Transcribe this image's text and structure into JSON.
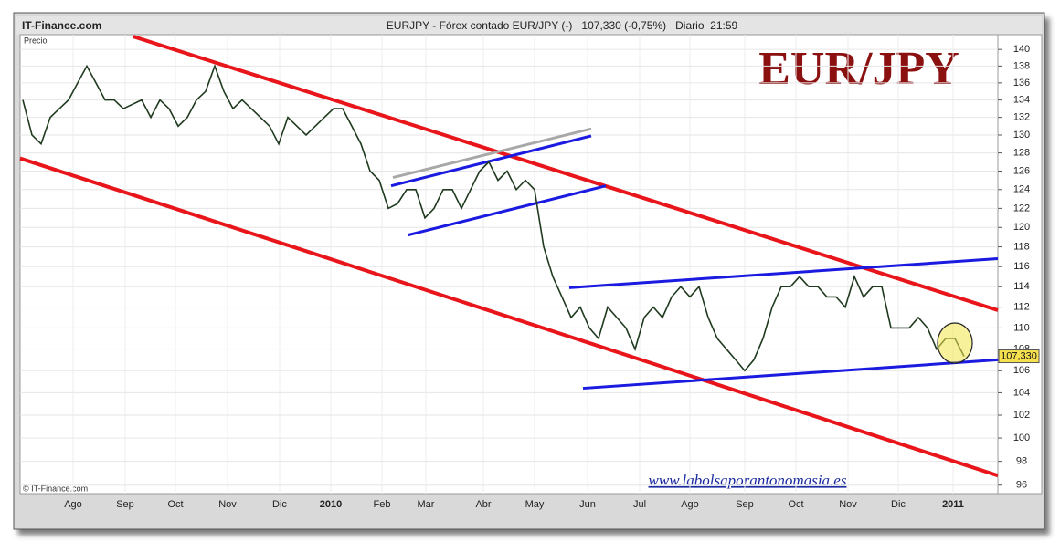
{
  "source": "IT-Finance.com",
  "copyright": "© IT-Finance.com",
  "website": "www.labolsaporantonomasia.es",
  "chart_data": {
    "type": "line",
    "title": "EURJPY - Fórex contado EUR/JPY (-)   107,330 (-0,75%)   Diario  21:59",
    "logo": "EUR/JPY",
    "y_label": "Precio",
    "color": "#1f3a1f",
    "log_scale": true,
    "grid": true,
    "values": [
      134,
      130,
      129,
      132,
      133,
      134,
      136,
      138,
      136,
      134,
      134,
      133,
      133.5,
      134,
      132,
      134,
      133,
      131,
      132,
      134,
      135,
      138,
      135,
      133,
      134,
      133,
      132,
      131,
      129,
      132,
      131,
      130,
      131,
      132,
      133,
      133,
      131,
      129,
      126,
      125,
      122,
      122.5,
      124,
      124,
      121,
      122,
      124,
      124,
      122,
      124,
      126,
      127,
      125,
      126,
      124,
      125,
      124,
      118,
      115,
      113,
      111,
      112,
      110,
      109,
      112,
      111,
      110,
      108,
      111,
      112,
      111,
      113,
      114,
      113,
      114,
      111,
      109,
      108,
      107,
      106,
      107,
      109,
      112,
      114,
      114,
      115,
      114,
      114,
      113,
      113,
      112,
      115,
      113,
      114,
      114,
      110,
      110,
      110,
      111,
      110,
      108,
      109,
      109,
      107.33
    ],
    "last_price": {
      "value": 107.33,
      "label": "107,330"
    },
    "xlim": [
      -0.3,
      106.7
    ],
    "xticks": [
      {
        "value": 5.5,
        "label": "Ago"
      },
      {
        "value": 11.2,
        "label": "Sep"
      },
      {
        "value": 16.7,
        "label": "Oct"
      },
      {
        "value": 22.4,
        "label": "Nov"
      },
      {
        "value": 28.1,
        "label": "Dic"
      },
      {
        "value": 33.7,
        "label": "2010"
      },
      {
        "value": 39.3,
        "label": "Feb"
      },
      {
        "value": 44.1,
        "label": "Mar"
      },
      {
        "value": 50.4,
        "label": "Abr"
      },
      {
        "value": 56,
        "label": "May"
      },
      {
        "value": 61.8,
        "label": "Jun"
      },
      {
        "value": 67.5,
        "label": "Jul"
      },
      {
        "value": 73,
        "label": "Ago"
      },
      {
        "value": 79,
        "label": "Sep"
      },
      {
        "value": 84.6,
        "label": "Oct"
      },
      {
        "value": 90.3,
        "label": "Nov"
      },
      {
        "value": 95.8,
        "label": "Dic"
      },
      {
        "value": 101.8,
        "label": "2011"
      }
    ],
    "ylim": [
      95.3,
      141.8
    ],
    "yticks": [
      96,
      98,
      100,
      102,
      104,
      106,
      108,
      110,
      112,
      114,
      116,
      118,
      120,
      122,
      124,
      126,
      128,
      130,
      132,
      134,
      136,
      138,
      140
    ],
    "trendlines": [
      {
        "color": "#e8161b",
        "x": [
          12.1,
          106.7
        ],
        "y": [
          141.56,
          111.7
        ]
      },
      {
        "color": "#e8161b",
        "x": [
          -0.3,
          106.7
        ],
        "y": [
          127.4,
          96.8
        ]
      },
      {
        "color": "#1a1ae0",
        "x": [
          61.3,
          106.7
        ],
        "y": [
          104.4,
          107.0
        ]
      },
      {
        "color": "#1a1ae0",
        "x": [
          59.8,
          106.7
        ],
        "y": [
          113.9,
          116.8
        ]
      },
      {
        "color": "#1a1ae0",
        "x": [
          40.3,
          62.2
        ],
        "y": [
          124.4,
          129.9
        ]
      },
      {
        "color": "#1a1ae0",
        "x": [
          42.1,
          63.8
        ],
        "y": [
          119.2,
          124.4
        ]
      },
      {
        "color": "#a8a8a8",
        "x": [
          40.5,
          62.2
        ],
        "y": [
          125.3,
          130.7
        ]
      }
    ]
  }
}
